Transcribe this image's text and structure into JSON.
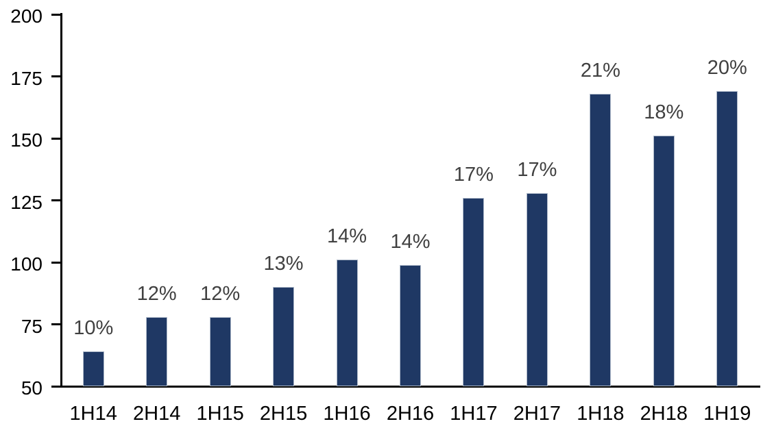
{
  "chart_data": {
    "type": "bar",
    "title": "",
    "xlabel": "",
    "ylabel": "",
    "categories": [
      "1H14",
      "2H14",
      "1H15",
      "2H15",
      "1H16",
      "2H16",
      "1H17",
      "2H17",
      "1H18",
      "2H18",
      "1H19"
    ],
    "values": [
      64,
      78,
      78,
      90,
      101,
      99,
      126,
      128,
      168,
      151,
      169
    ],
    "data_labels": [
      "10%",
      "12%",
      "12%",
      "13%",
      "14%",
      "14%",
      "17%",
      "17%",
      "21%",
      "18%",
      "20%"
    ],
    "ylim": [
      50,
      200
    ],
    "yticks": [
      50,
      75,
      100,
      125,
      150,
      175,
      200
    ],
    "grid": false,
    "legend": null,
    "colors": {
      "bar_fill": "#1F3864",
      "bar_border": "#AFBACA",
      "data_label": "#404040",
      "axis": "#000000",
      "background": "#FFFFFF"
    }
  }
}
